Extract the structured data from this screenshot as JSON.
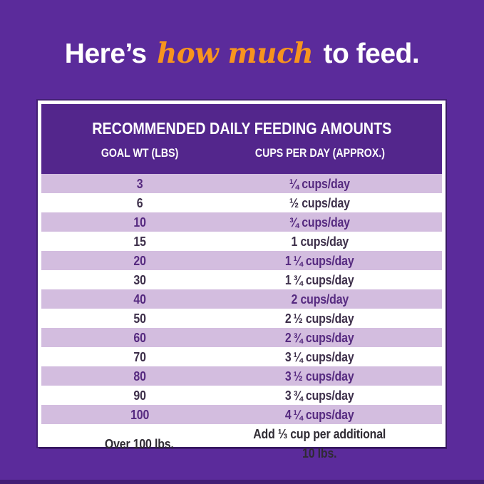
{
  "heading": {
    "part1": "Here’s",
    "highlight": "how much",
    "part2": "to feed."
  },
  "chart_data": {
    "type": "table",
    "title": "RECOMMENDED DAILY FEEDING AMOUNTS",
    "columns": [
      "GOAL WT (LBS)",
      "CUPS PER DAY (APPROX.)"
    ],
    "rows": [
      [
        "3",
        "¼ cups/day"
      ],
      [
        "6",
        "½ cups/day"
      ],
      [
        "10",
        "¾ cups/day"
      ],
      [
        "15",
        "1 cups/day"
      ],
      [
        "20",
        "1 ¼ cups/day"
      ],
      [
        "30",
        "1 ¾ cups/day"
      ],
      [
        "40",
        "2 cups/day"
      ],
      [
        "50",
        "2 ½ cups/day"
      ],
      [
        "60",
        "2 ¾ cups/day"
      ],
      [
        "70",
        "3 ¼ cups/day"
      ],
      [
        "80",
        "3 ½ cups/day"
      ],
      [
        "90",
        "3 ¾ cups/day"
      ],
      [
        "100",
        "4 ¼ cups/day"
      ],
      [
        "Over 100 lbs.",
        "Add ⅓ cup per additional 10 lbs."
      ]
    ],
    "layout": {
      "stripe_style": "alternating rows starting lavender",
      "legend": "none",
      "grid": "off"
    }
  },
  "colors": {
    "background_purple": "#5b2b9b",
    "table_header_purple": "#53268c",
    "stripe_lavender": "#d3bddf",
    "stripe_text_purple": "#562a80",
    "white_row_text": "#3d2f4a",
    "accent_orange": "#f7941e",
    "frame_white": "#ffffff"
  }
}
